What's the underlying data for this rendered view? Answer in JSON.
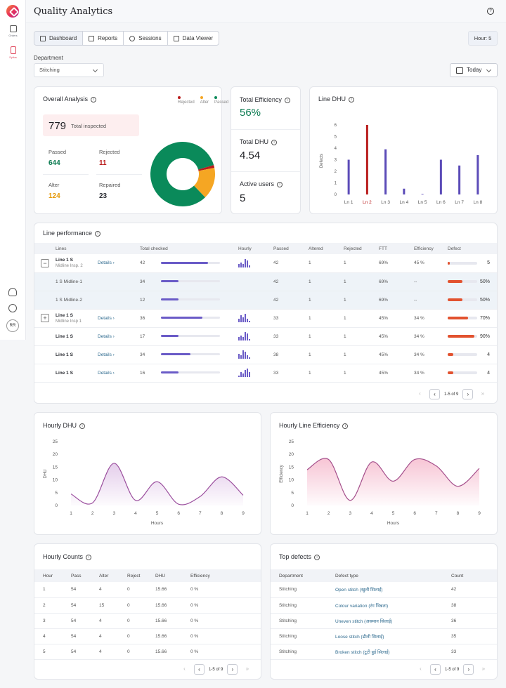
{
  "app": {
    "title": "Quality Analytics"
  },
  "sidebar": {
    "items": [
      {
        "label": "Orders",
        "icon": "box-icon"
      },
      {
        "label": "Sylius",
        "icon": "tablet-icon"
      }
    ],
    "avatar": "RR"
  },
  "tabs": [
    {
      "label": "Dashboard",
      "icon": "grid-icon"
    },
    {
      "label": "Reports",
      "icon": "document-icon"
    },
    {
      "label": "Sessions",
      "icon": "clock-icon"
    },
    {
      "label": "Data Viewer",
      "icon": "monitor-icon"
    }
  ],
  "hour_badge": "Hour: 5",
  "filters": {
    "department_label": "Department",
    "department_value": "Stitching",
    "date_value": "Today"
  },
  "overall": {
    "title": "Overall Analysis",
    "legend": [
      {
        "label": "Rejected",
        "color": "#b91c1c"
      },
      {
        "label": "Alter",
        "color": "#f5a623"
      },
      {
        "label": "Passed",
        "color": "#0a8a5a"
      }
    ],
    "total_inspected_value": "779",
    "total_inspected_label": "Total inspected",
    "passed_label": "Passed",
    "passed_value": "644",
    "rejected_label": "Rejected",
    "rejected_value": "11",
    "alter_label": "Alter",
    "alter_value": "124",
    "repaired_label": "Repaired",
    "repaired_value": "23"
  },
  "kpis": {
    "efficiency_label": "Total Efficiency",
    "efficiency_value": "56%",
    "dhu_label": "Total DHU",
    "dhu_value": "4.54",
    "users_label": "Active users",
    "users_value": "5"
  },
  "line_dhu": {
    "title": "Line DHU"
  },
  "line_performance": {
    "title": "Line performance",
    "headers": [
      "Lines",
      "Total checked",
      "Hourly",
      "Passed",
      "Altered",
      "Rejected",
      "FTT",
      "Efficiency",
      "Defect"
    ],
    "rows": [
      {
        "toggle": "−",
        "line": "Line 1 S",
        "sub": "Midline Insp. 2",
        "details": "Details ›",
        "total": "42",
        "progress": 0.8,
        "passed": "42",
        "altered": "1",
        "rejected": "1",
        "ftt": "69%",
        "eff": "45 %",
        "defect_fill": 0.08,
        "defect": "5",
        "type": "main"
      },
      {
        "toggle": "",
        "line": "1 S Midline-1",
        "sub": "",
        "details": "",
        "total": "34",
        "progress": 0.3,
        "passed": "42",
        "altered": "1",
        "rejected": "1",
        "ftt": "69%",
        "eff": "--",
        "defect_fill": 0.5,
        "defect": "50%",
        "type": "sub"
      },
      {
        "toggle": "",
        "line": "1 S Midline-2",
        "sub": "",
        "details": "",
        "total": "12",
        "progress": 0.3,
        "passed": "42",
        "altered": "1",
        "rejected": "1",
        "ftt": "69%",
        "eff": "--",
        "defect_fill": 0.5,
        "defect": "50%",
        "type": "sub"
      },
      {
        "toggle": "+",
        "line": "Line 1 S",
        "sub": "Midline Insp 1",
        "details": "Details ›",
        "total": "36",
        "progress": 0.7,
        "passed": "33",
        "altered": "1",
        "rejected": "1",
        "ftt": "45%",
        "eff": "34 %",
        "defect_fill": 0.7,
        "defect": "70%",
        "type": "main"
      },
      {
        "toggle": "",
        "line": "Line 1 S",
        "sub": "",
        "details": "Details ›",
        "total": "17",
        "progress": 0.3,
        "passed": "33",
        "altered": "1",
        "rejected": "1",
        "ftt": "45%",
        "eff": "34 %",
        "defect_fill": 0.9,
        "defect": "90%",
        "type": "main"
      },
      {
        "toggle": "",
        "line": "Line 1 S",
        "sub": "",
        "details": "Details ›",
        "total": "34",
        "progress": 0.5,
        "passed": "38",
        "altered": "1",
        "rejected": "1",
        "ftt": "45%",
        "eff": "34 %",
        "defect_fill": 0.2,
        "defect": "4",
        "type": "main"
      },
      {
        "toggle": "",
        "line": "Line 1 S",
        "sub": "",
        "details": "Details ›",
        "total": "16",
        "progress": 0.3,
        "passed": "33",
        "altered": "1",
        "rejected": "1",
        "ftt": "45%",
        "eff": "34 %",
        "defect_fill": 0.2,
        "defect": "4",
        "type": "main"
      }
    ],
    "pagination": "1-5 of 9"
  },
  "hourly_dhu": {
    "title": "Hourly DHU"
  },
  "hourly_eff": {
    "title": "Hourly Line Efficiency"
  },
  "hourly_counts": {
    "title": "Hourly Counts",
    "headers": [
      "Hour",
      "Pass",
      "Alter",
      "Reject",
      "DHU",
      "Efficiency"
    ],
    "rows": [
      [
        "1",
        "54",
        "4",
        "0",
        "15.66",
        "0 %"
      ],
      [
        "2",
        "54",
        "15",
        "0",
        "15.66",
        "0 %"
      ],
      [
        "3",
        "54",
        "4",
        "0",
        "15.66",
        "0 %"
      ],
      [
        "4",
        "54",
        "4",
        "0",
        "15.66",
        "0 %"
      ],
      [
        "5",
        "54",
        "4",
        "0",
        "15.66",
        "0 %"
      ]
    ],
    "pagination": "1-5 of 9"
  },
  "top_defects": {
    "title": "Top defects",
    "headers": [
      "Department",
      "Defect type",
      "Count"
    ],
    "rows": [
      [
        "Stitching",
        "Open stitch (खुली सिलाई)",
        "42"
      ],
      [
        "Stitching",
        "Colour variation (रंग भिन्नता)",
        "38"
      ],
      [
        "Stitching",
        "Uneven stitch (असमान सिलाई)",
        "36"
      ],
      [
        "Stitching",
        "Loose stitch (ढीली सिलाई)",
        "35"
      ],
      [
        "Stitching",
        "Broken stitch (टूटी हुई सिलाई)",
        "33"
      ]
    ],
    "pagination": "1-5 of 9"
  },
  "chart_data": [
    {
      "type": "pie",
      "labels": [
        "Passed",
        "Alter",
        "Rejected"
      ],
      "values": [
        644,
        124,
        11
      ],
      "colors": [
        "#0a8a5a",
        "#f5a623",
        "#b91c1c"
      ]
    },
    {
      "type": "bar",
      "title": "Line DHU",
      "ylabel": "Defects",
      "categories": [
        "Ln 1",
        "Ln 2",
        "Ln 3",
        "Ln 4",
        "Ln 5",
        "Ln 6",
        "Ln 7",
        "Ln 8"
      ],
      "values": [
        3,
        6,
        3.9,
        0.5,
        0.05,
        3,
        2.5,
        3.4
      ],
      "highlight": "Ln 2",
      "ylim": [
        0,
        6
      ],
      "yticks": [
        0,
        1,
        2,
        3,
        4,
        5,
        6
      ]
    },
    {
      "type": "area",
      "title": "Hourly DHU",
      "xlabel": "Hours",
      "ylabel": "DHU",
      "x": [
        1,
        2,
        3,
        4,
        5,
        6,
        7,
        8,
        9
      ],
      "values": [
        4.5,
        1,
        16.5,
        2,
        9.3,
        0.5,
        3.5,
        11.2,
        4
      ],
      "ylim": [
        0,
        25
      ],
      "yticks": [
        0,
        5,
        10,
        15,
        20,
        25
      ]
    },
    {
      "type": "area",
      "title": "Hourly Line Efficiency",
      "xlabel": "Hours",
      "ylabel": "Efficiency",
      "x": [
        1,
        2,
        3,
        4,
        5,
        6,
        7,
        8,
        9
      ],
      "values": [
        14,
        18,
        2,
        17,
        9.5,
        18,
        15.5,
        7.5,
        14.5
      ],
      "ylim": [
        0,
        25
      ],
      "yticks": [
        0,
        5,
        10,
        15,
        20,
        25
      ]
    }
  ]
}
